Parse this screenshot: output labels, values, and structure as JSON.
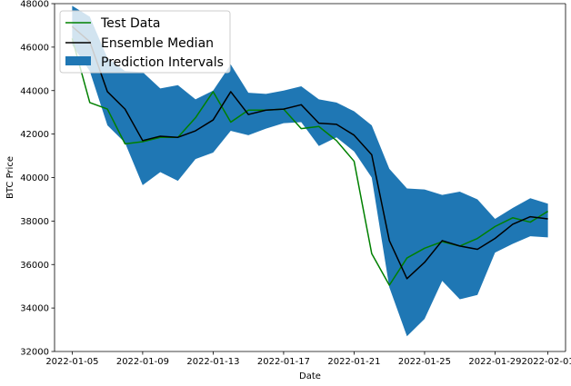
{
  "chart_data": {
    "type": "line",
    "xlabel": "Date",
    "ylabel": "BTC Price",
    "ylim": [
      32000,
      48000
    ],
    "yticks": [
      32000,
      34000,
      36000,
      38000,
      40000,
      42000,
      44000,
      46000,
      48000
    ],
    "xticks": [
      "2022-01-05",
      "2022-01-09",
      "2022-01-13",
      "2022-01-17",
      "2022-01-21",
      "2022-01-25",
      "2022-01-29",
      "2022-02-01"
    ],
    "xlim": [
      "2022-01-04",
      "2022-02-02"
    ],
    "x": [
      "2022-01-05",
      "2022-01-06",
      "2022-01-07",
      "2022-01-08",
      "2022-01-09",
      "2022-01-10",
      "2022-01-11",
      "2022-01-12",
      "2022-01-13",
      "2022-01-14",
      "2022-01-15",
      "2022-01-16",
      "2022-01-17",
      "2022-01-18",
      "2022-01-19",
      "2022-01-20",
      "2022-01-21",
      "2022-01-22",
      "2022-01-23",
      "2022-01-24",
      "2022-01-25",
      "2022-01-26",
      "2022-01-27",
      "2022-01-28",
      "2022-01-29",
      "2022-01-30",
      "2022-01-31",
      "2022-02-01"
    ],
    "series": [
      {
        "name": "Test Data",
        "color": "#008000",
        "values": [
          46400,
          43450,
          43150,
          41550,
          41650,
          41850,
          41850,
          42750,
          43950,
          42550,
          43100,
          43100,
          43150,
          42250,
          42350,
          41700,
          40750,
          36500,
          35050,
          36300,
          36750,
          37050,
          36850,
          37200,
          37750,
          38150,
          37950,
          38450
        ]
      },
      {
        "name": "Ensemble Median",
        "color": "#000000",
        "values": [
          46950,
          46250,
          43950,
          43150,
          41700,
          41900,
          41850,
          42150,
          42650,
          43950,
          42900,
          43100,
          43150,
          43350,
          42500,
          42450,
          41950,
          41050,
          37100,
          35350,
          36100,
          37100,
          36850,
          36700,
          37200,
          37850,
          38200,
          38100
        ]
      }
    ],
    "interval": {
      "name": "Prediction Intervals",
      "color": "#1f77b4",
      "upper": [
        47900,
        47400,
        45500,
        44900,
        44850,
        44100,
        44250,
        43600,
        44000,
        45200,
        43900,
        43850,
        44000,
        44200,
        43600,
        43450,
        43050,
        42400,
        40400,
        39500,
        39450,
        39200,
        39350,
        39000,
        38100,
        38600,
        39050,
        38800
      ],
      "lower": [
        46100,
        44900,
        42400,
        41600,
        39650,
        40250,
        39850,
        40850,
        41150,
        42150,
        41950,
        42250,
        42500,
        42550,
        41450,
        41850,
        41200,
        40000,
        34950,
        32700,
        33500,
        35250,
        34400,
        34600,
        36550,
        36950,
        37300,
        37250
      ]
    },
    "legend": "upper-left",
    "grid": false
  }
}
